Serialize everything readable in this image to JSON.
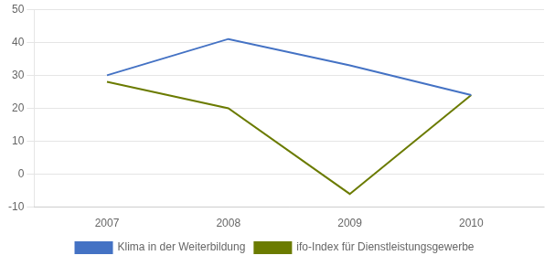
{
  "chart_data": {
    "type": "line",
    "x": [
      2007,
      2008,
      2009,
      2010
    ],
    "series": [
      {
        "name": "Klima in der Weiterbildung",
        "color": "#4472C4",
        "values": [
          30,
          41,
          33,
          24
        ]
      },
      {
        "name": "ifo-Index für Dienstleistungsgewerbe",
        "color": "#6B7B00",
        "values": [
          28,
          20,
          -6,
          24
        ]
      }
    ],
    "xlim": [
      2006.4,
      2010.6
    ],
    "xticks": [
      2007,
      2008,
      2009,
      2010
    ],
    "ylim": [
      -10,
      50
    ],
    "yticks": [
      -10,
      0,
      10,
      20,
      30,
      40,
      50
    ],
    "grid": true,
    "legend": "bottom"
  }
}
